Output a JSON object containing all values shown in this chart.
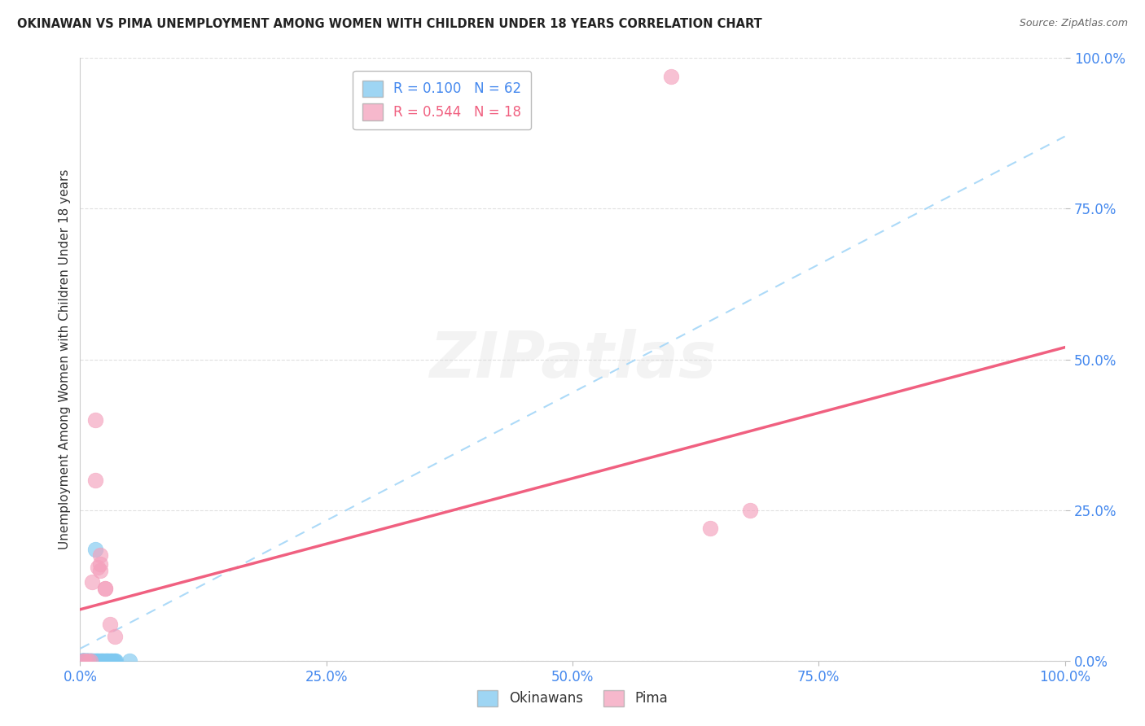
{
  "title": "OKINAWAN VS PIMA UNEMPLOYMENT AMONG WOMEN WITH CHILDREN UNDER 18 YEARS CORRELATION CHART",
  "source": "Source: ZipAtlas.com",
  "ylabel": "Unemployment Among Women with Children Under 18 years",
  "xlim": [
    0.0,
    1.0
  ],
  "ylim": [
    0.0,
    1.0
  ],
  "xticks": [
    0.0,
    0.25,
    0.5,
    0.75,
    1.0
  ],
  "yticks": [
    0.0,
    0.25,
    0.5,
    0.75,
    1.0
  ],
  "xtick_labels": [
    "0.0%",
    "25.0%",
    "50.0%",
    "75.0%",
    "100.0%"
  ],
  "ytick_labels": [
    "0.0%",
    "25.0%",
    "50.0%",
    "75.0%",
    "100.0%"
  ],
  "watermark": "ZIPatlas",
  "legend_label1": "R = 0.100   N = 62",
  "legend_label2": "R = 0.544   N = 18",
  "okinawan_color": "#7EC8F0",
  "pima_color": "#F4A0BC",
  "okinawan_line_color": "#A8D8F8",
  "pima_line_color": "#F06080",
  "background_color": "#FFFFFF",
  "tick_color": "#4488EE",
  "title_color": "#222222",
  "grid_color": "#CCCCCC",
  "okinawan_x": [
    0.001,
    0.002,
    0.002,
    0.003,
    0.003,
    0.004,
    0.005,
    0.005,
    0.006,
    0.007,
    0.008,
    0.009,
    0.01,
    0.01,
    0.011,
    0.012,
    0.013,
    0.014,
    0.015,
    0.016,
    0.017,
    0.018,
    0.019,
    0.02,
    0.021,
    0.022,
    0.023,
    0.024,
    0.025,
    0.026,
    0.027,
    0.028,
    0.029,
    0.03,
    0.031,
    0.032,
    0.033,
    0.034,
    0.035,
    0.036,
    0.002,
    0.003,
    0.004,
    0.005,
    0.006,
    0.007,
    0.008,
    0.009,
    0.01,
    0.011,
    0.001,
    0.002,
    0.003,
    0.003,
    0.004,
    0.004,
    0.005,
    0.006,
    0.007,
    0.007,
    0.05,
    0.015
  ],
  "okinawan_y": [
    0.0,
    0.0,
    0.0,
    0.0,
    0.0,
    0.0,
    0.0,
    0.0,
    0.0,
    0.0,
    0.0,
    0.0,
    0.0,
    0.0,
    0.0,
    0.0,
    0.0,
    0.0,
    0.0,
    0.0,
    0.0,
    0.0,
    0.0,
    0.0,
    0.0,
    0.0,
    0.0,
    0.0,
    0.0,
    0.0,
    0.0,
    0.0,
    0.0,
    0.0,
    0.0,
    0.0,
    0.0,
    0.0,
    0.0,
    0.0,
    0.0,
    0.0,
    0.0,
    0.0,
    0.0,
    0.0,
    0.0,
    0.0,
    0.0,
    0.0,
    0.0,
    0.0,
    0.0,
    0.0,
    0.0,
    0.0,
    0.0,
    0.0,
    0.0,
    0.0,
    0.0,
    0.185
  ],
  "pima_x": [
    0.003,
    0.005,
    0.008,
    0.01,
    0.012,
    0.015,
    0.018,
    0.02,
    0.025,
    0.03,
    0.035,
    0.6,
    0.64,
    0.68,
    0.015,
    0.02,
    0.025,
    0.02
  ],
  "pima_y": [
    0.0,
    0.0,
    0.0,
    0.0,
    0.13,
    0.3,
    0.155,
    0.15,
    0.12,
    0.06,
    0.04,
    0.97,
    0.22,
    0.25,
    0.4,
    0.175,
    0.12,
    0.16
  ],
  "ok_line_x0": 0.0,
  "ok_line_y0": 0.02,
  "ok_line_x1": 1.0,
  "ok_line_y1": 0.87,
  "pima_line_x0": 0.0,
  "pima_line_y0": 0.085,
  "pima_line_x1": 1.0,
  "pima_line_y1": 0.52
}
